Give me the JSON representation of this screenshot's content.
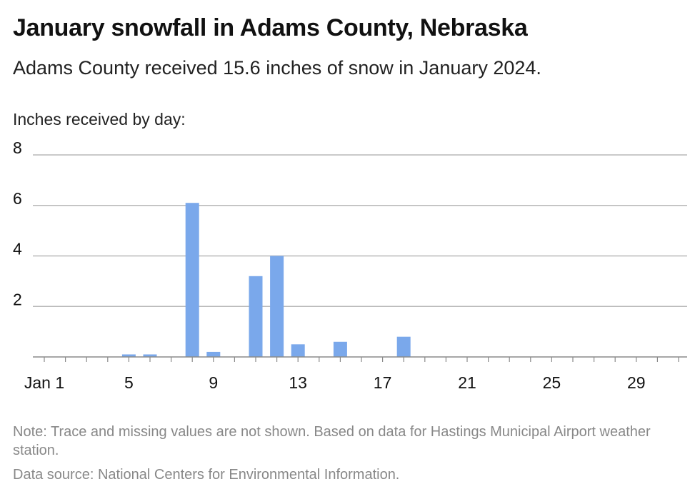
{
  "header": {
    "title": "January snowfall in Adams County, Nebraska",
    "subtitle": "Adams County received 15.6 inches of snow in January 2024."
  },
  "footer": {
    "note": "Note: Trace and missing values are not shown. Based on data for Hastings Municipal Airport weather station.",
    "source": "Data source: National Centers for Environmental Information."
  },
  "colors": {
    "bar": "#7aa8eb",
    "grid": "#b8b8b8",
    "axis": "#8a8a8a",
    "text": "#111111",
    "muted": "#888888"
  },
  "chart_data": {
    "type": "bar",
    "title": "January snowfall in Adams County, Nebraska",
    "subtitle": "Adams County received 15.6 inches of snow in January 2024.",
    "ylabel": "Inches received by day:",
    "xlabel": "",
    "x": [
      1,
      2,
      3,
      4,
      5,
      6,
      7,
      8,
      9,
      10,
      11,
      12,
      13,
      14,
      15,
      16,
      17,
      18,
      19,
      20,
      21,
      22,
      23,
      24,
      25,
      26,
      27,
      28,
      29,
      30,
      31
    ],
    "values": [
      0,
      0,
      0,
      0,
      0.1,
      0.1,
      0,
      6.1,
      0.2,
      0,
      3.2,
      4.0,
      0.5,
      0,
      0.6,
      0,
      0,
      0.8,
      0,
      0,
      0,
      0,
      0,
      0,
      0,
      0,
      0,
      0,
      0,
      0,
      0
    ],
    "xticks": [
      1,
      5,
      9,
      13,
      17,
      21,
      25,
      29
    ],
    "xtick_labels": [
      "Jan 1",
      "5",
      "9",
      "13",
      "17",
      "21",
      "25",
      "29"
    ],
    "yticks": [
      2,
      4,
      6,
      8
    ],
    "ylim": [
      0,
      8
    ],
    "xlim": [
      0.5,
      31.5
    ],
    "grid": true,
    "legend": "none"
  }
}
